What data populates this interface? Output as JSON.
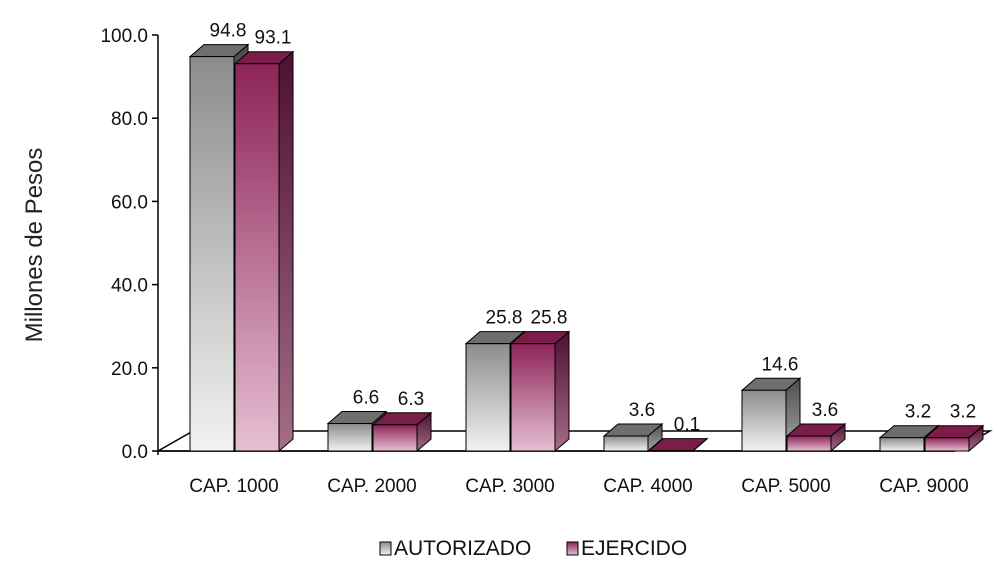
{
  "chart_data": {
    "type": "bar",
    "categories": [
      "CAP. 1000",
      "CAP. 2000",
      "CAP. 3000",
      "CAP. 4000",
      "CAP. 5000",
      "CAP. 9000"
    ],
    "series": [
      {
        "name": "AUTORIZADO",
        "values": [
          94.8,
          6.6,
          25.8,
          3.6,
          14.6,
          3.2
        ],
        "labels": [
          "94.8",
          "6.6",
          "25.8",
          "3.6",
          "14.6",
          "3.2"
        ],
        "color": "#9a9a9a"
      },
      {
        "name": "EJERCIDO",
        "values": [
          93.1,
          6.3,
          25.8,
          0.1,
          3.6,
          3.2
        ],
        "labels": [
          "93.1",
          "6.3",
          "25.8",
          "0.1",
          "3.6",
          "3.2"
        ],
        "color": "#9c2f64"
      }
    ],
    "title": "",
    "xlabel": "",
    "ylabel": "Millones de Pesos",
    "ylim": [
      0,
      100
    ],
    "yticks": [
      "0.0",
      "20.0",
      "40.0",
      "60.0",
      "80.0",
      "100.0"
    ],
    "grid": false,
    "legend": "bottom",
    "style": "3d-bar"
  }
}
